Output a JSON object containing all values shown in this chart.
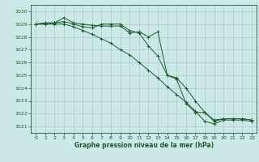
{
  "background_color": "#cce8e8",
  "grid_color": "#aacccc",
  "line_color": "#1a5c28",
  "xlabel": "Graphe pression niveau de la mer (hPa)",
  "ylim": [
    1020.5,
    1030.5
  ],
  "xlim": [
    -0.5,
    23.5
  ],
  "yticks": [
    1021,
    1022,
    1023,
    1024,
    1025,
    1026,
    1027,
    1028,
    1029,
    1030
  ],
  "xticks": [
    0,
    1,
    2,
    3,
    4,
    5,
    6,
    7,
    8,
    9,
    10,
    11,
    12,
    13,
    14,
    15,
    16,
    17,
    18,
    19,
    20,
    21,
    22,
    23
  ],
  "series1": [
    1029.0,
    1029.1,
    1029.1,
    1029.5,
    1029.1,
    1029.0,
    1028.9,
    1028.85,
    1028.85,
    1028.85,
    1028.3,
    1028.4,
    1028.0,
    1028.4,
    1025.0,
    1024.7,
    1022.8,
    1022.1,
    1022.1,
    1021.5,
    1021.6,
    1021.6,
    1021.6,
    1021.5
  ],
  "series2": [
    1029.0,
    1029.0,
    1029.1,
    1029.2,
    1029.0,
    1028.8,
    1028.7,
    1029.0,
    1029.0,
    1029.0,
    1028.5,
    1028.3,
    1027.3,
    1026.5,
    1025.0,
    1024.8,
    1024.0,
    1023.0,
    1022.1,
    1021.4,
    1021.6,
    1021.6,
    1021.6,
    1021.5
  ],
  "series3": [
    1029.0,
    1029.0,
    1029.0,
    1029.0,
    1028.8,
    1028.5,
    1028.2,
    1027.85,
    1027.5,
    1027.0,
    1026.6,
    1026.0,
    1025.4,
    1024.8,
    1024.1,
    1023.5,
    1022.9,
    1022.2,
    1021.4,
    1021.2,
    1021.5,
    1021.5,
    1021.5,
    1021.4
  ]
}
